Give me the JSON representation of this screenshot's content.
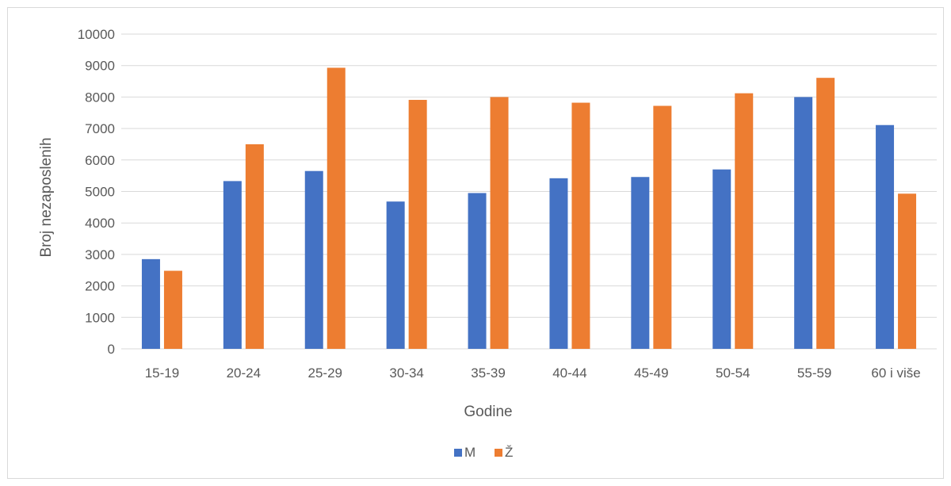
{
  "chart_data": {
    "type": "bar",
    "title": "",
    "xlabel": "Godine",
    "ylabel": "Broj nezaposlenih",
    "ylim": [
      0,
      10000
    ],
    "yticks": [
      0,
      1000,
      2000,
      3000,
      4000,
      5000,
      6000,
      7000,
      8000,
      9000,
      10000
    ],
    "grid": true,
    "legend_position": "bottom",
    "categories": [
      "15-19",
      "20-24",
      "25-29",
      "30-34",
      "35-39",
      "40-44",
      "45-49",
      "50-54",
      "55-59",
      "60 i više"
    ],
    "series": [
      {
        "name": "M",
        "color": "#4472c4",
        "values": [
          2850,
          5330,
          5650,
          4680,
          4950,
          5420,
          5460,
          5700,
          8000,
          7110
        ]
      },
      {
        "name": "Ž",
        "color": "#ed7d31",
        "values": [
          2480,
          6500,
          8930,
          7910,
          8000,
          7820,
          7720,
          8120,
          8610,
          4930
        ]
      }
    ]
  }
}
